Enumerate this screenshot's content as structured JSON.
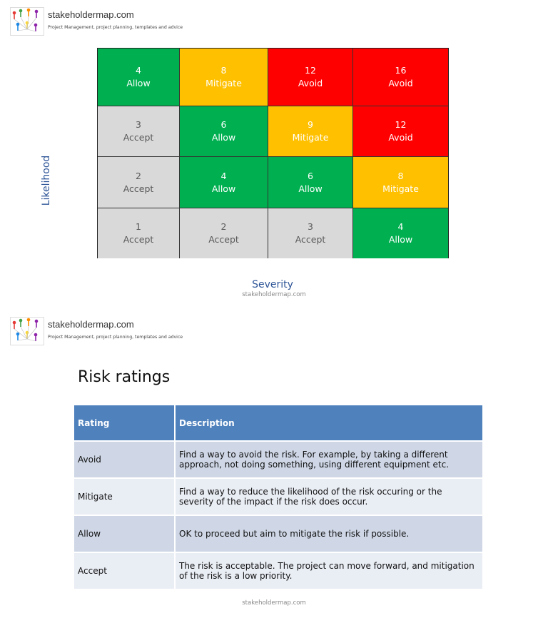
{
  "branding": {
    "site": "stakeholdermap.com",
    "tagline": "Project Management, project planning, templates and advice",
    "footer_credit": "stakeholdermap.com"
  },
  "matrix": {
    "y_axis_label": "Likelihood",
    "x_axis_label": "Severity",
    "rows": [
      [
        {
          "score": "4",
          "action": "Allow",
          "rating": "allow"
        },
        {
          "score": "8",
          "action": "Mitigate",
          "rating": "mitigate"
        },
        {
          "score": "12",
          "action": "Avoid",
          "rating": "avoid"
        },
        {
          "score": "16",
          "action": "Avoid",
          "rating": "avoid"
        }
      ],
      [
        {
          "score": "3",
          "action": "Accept",
          "rating": "accept"
        },
        {
          "score": "6",
          "action": "Allow",
          "rating": "allow"
        },
        {
          "score": "9",
          "action": "Mitigate",
          "rating": "mitigate"
        },
        {
          "score": "12",
          "action": "Avoid",
          "rating": "avoid"
        }
      ],
      [
        {
          "score": "2",
          "action": "Accept",
          "rating": "accept"
        },
        {
          "score": "4",
          "action": "Allow",
          "rating": "allow"
        },
        {
          "score": "6",
          "action": "Allow",
          "rating": "allow"
        },
        {
          "score": "8",
          "action": "Mitigate",
          "rating": "mitigate"
        }
      ],
      [
        {
          "score": "1",
          "action": "Accept",
          "rating": "accept"
        },
        {
          "score": "2",
          "action": "Accept",
          "rating": "accept"
        },
        {
          "score": "3",
          "action": "Accept",
          "rating": "accept"
        },
        {
          "score": "4",
          "action": "Allow",
          "rating": "allow"
        }
      ]
    ],
    "colors": {
      "allow": {
        "bg": "#00b050",
        "fg": "#ffffff"
      },
      "mitigate": {
        "bg": "#ffc000",
        "fg": "#ffffff"
      },
      "avoid": {
        "bg": "#ff0000",
        "fg": "#ffffff"
      },
      "accept": {
        "bg": "#d9d9d9",
        "fg": "#595959"
      }
    }
  },
  "ratings_section": {
    "title": "Risk ratings",
    "columns": [
      "Rating",
      "Description"
    ],
    "rows": [
      {
        "rating": "Avoid",
        "description": "Find a way to avoid the risk. For example, by taking a different approach, not doing something, using different equipment etc."
      },
      {
        "rating": "Mitigate",
        "description": "Find a way to reduce the likelihood of the risk occuring or the severity of the impact if the risk does occur."
      },
      {
        "rating": "Allow",
        "description": "OK to proceed but aim to mitigate the risk if possible."
      },
      {
        "rating": "Accept",
        "description": "The risk is acceptable. The project can move forward, and mitigation of the risk is a low priority."
      }
    ]
  }
}
